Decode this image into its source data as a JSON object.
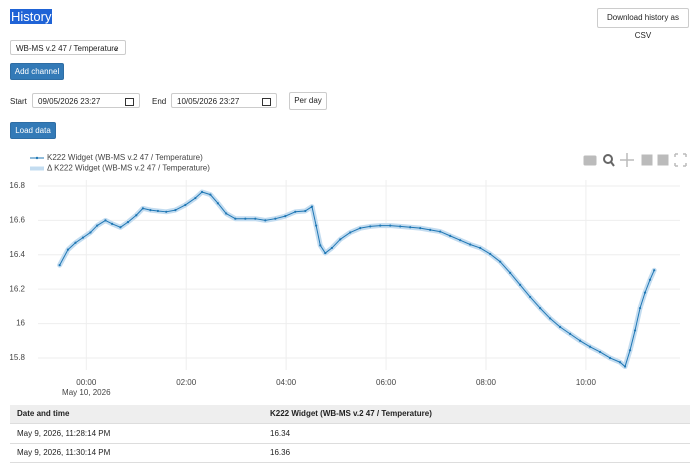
{
  "header": {
    "title": "History",
    "download_button": "Download history as CSV"
  },
  "controls": {
    "channel_select": "WB-MS v.2 47 / Temperature",
    "add_channel": "Add channel",
    "start_label": "Start",
    "start_value": "09/05/2026 23:27",
    "end_label": "End",
    "end_value": "10/05/2026 23:27",
    "per_day": "Per day",
    "load_data": "Load data"
  },
  "chart_data": {
    "type": "line",
    "x": [
      "2026-05-09T23:28",
      "2026-05-09T23:38",
      "2026-05-09T23:47",
      "2026-05-09T23:56",
      "2026-05-10T00:05",
      "2026-05-10T00:13",
      "2026-05-10T00:23",
      "2026-05-10T00:31",
      "2026-05-10T00:41",
      "2026-05-10T00:50",
      "2026-05-10T01:00",
      "2026-05-10T01:08",
      "2026-05-10T01:17",
      "2026-05-10T01:26",
      "2026-05-10T01:36",
      "2026-05-10T01:47",
      "2026-05-10T01:59",
      "2026-05-10T02:11",
      "2026-05-10T02:19",
      "2026-05-10T02:29",
      "2026-05-10T02:38",
      "2026-05-10T02:48",
      "2026-05-10T02:59",
      "2026-05-10T03:11",
      "2026-05-10T03:23",
      "2026-05-10T03:35",
      "2026-05-10T03:47",
      "2026-05-10T03:59",
      "2026-05-10T04:11",
      "2026-05-10T04:23",
      "2026-05-10T04:31",
      "2026-05-10T04:36",
      "2026-05-10T04:41",
      "2026-05-10T04:47",
      "2026-05-10T04:55",
      "2026-05-10T05:05",
      "2026-05-10T05:17",
      "2026-05-10T05:29",
      "2026-05-10T05:41",
      "2026-05-10T05:53",
      "2026-05-10T06:05",
      "2026-05-10T06:17",
      "2026-05-10T06:29",
      "2026-05-10T06:41",
      "2026-05-10T06:53",
      "2026-05-10T07:05",
      "2026-05-10T07:17",
      "2026-05-10T07:29",
      "2026-05-10T07:41",
      "2026-05-10T07:53",
      "2026-05-10T08:05",
      "2026-05-10T08:17",
      "2026-05-10T08:29",
      "2026-05-10T08:41",
      "2026-05-10T08:53",
      "2026-05-10T09:05",
      "2026-05-10T09:17",
      "2026-05-10T09:29",
      "2026-05-10T09:41",
      "2026-05-10T09:53",
      "2026-05-10T10:05",
      "2026-05-10T10:17",
      "2026-05-10T10:29",
      "2026-05-10T10:41",
      "2026-05-10T10:47",
      "2026-05-10T10:53",
      "2026-05-10T10:59",
      "2026-05-10T11:05",
      "2026-05-10T11:11",
      "2026-05-10T11:17",
      "2026-05-10T11:22"
    ],
    "series": [
      {
        "name": "K222 Widget (WB-MS v.2 47 / Temperature)",
        "color": "#1f77b4",
        "values": [
          16.34,
          16.43,
          16.47,
          16.5,
          16.53,
          16.57,
          16.6,
          16.58,
          16.56,
          16.59,
          16.63,
          16.67,
          16.66,
          16.655,
          16.65,
          16.66,
          16.69,
          16.73,
          16.765,
          16.75,
          16.7,
          16.64,
          16.61,
          16.61,
          16.61,
          16.6,
          16.61,
          16.625,
          16.65,
          16.655,
          16.68,
          16.57,
          16.455,
          16.41,
          16.44,
          16.49,
          16.53,
          16.555,
          16.565,
          16.57,
          16.57,
          16.565,
          16.56,
          16.555,
          16.545,
          16.535,
          16.51,
          16.485,
          16.46,
          16.44,
          16.405,
          16.36,
          16.295,
          16.225,
          16.155,
          16.09,
          16.03,
          15.98,
          15.94,
          15.9,
          15.865,
          15.835,
          15.8,
          15.775,
          15.75,
          15.845,
          15.96,
          16.09,
          16.18,
          16.255,
          16.31
        ]
      },
      {
        "name": "Δ K222 Widget (WB-MS v.2 47 / Temperature)",
        "color": "#c3dcf0",
        "values": [
          16.34,
          16.43,
          16.47,
          16.5,
          16.53,
          16.57,
          16.6,
          16.58,
          16.56,
          16.59,
          16.63,
          16.67,
          16.66,
          16.655,
          16.65,
          16.66,
          16.69,
          16.73,
          16.765,
          16.75,
          16.7,
          16.64,
          16.61,
          16.61,
          16.61,
          16.6,
          16.61,
          16.625,
          16.65,
          16.655,
          16.68,
          16.57,
          16.455,
          16.41,
          16.44,
          16.49,
          16.53,
          16.555,
          16.565,
          16.57,
          16.57,
          16.565,
          16.56,
          16.555,
          16.545,
          16.535,
          16.51,
          16.485,
          16.46,
          16.44,
          16.405,
          16.36,
          16.295,
          16.225,
          16.155,
          16.09,
          16.03,
          15.98,
          15.94,
          15.9,
          15.865,
          15.835,
          15.8,
          15.775,
          15.75,
          15.845,
          15.96,
          16.09,
          16.18,
          16.255,
          16.31
        ]
      }
    ],
    "xlim": [
      "2026-05-09T23:02",
      "2026-05-10T11:53"
    ],
    "xticks": [
      {
        "value": "2026-05-10T00:00",
        "label": "00:00"
      },
      {
        "value": "2026-05-10T02:00",
        "label": "02:00"
      },
      {
        "value": "2026-05-10T04:00",
        "label": "04:00"
      },
      {
        "value": "2026-05-10T06:00",
        "label": "06:00"
      },
      {
        "value": "2026-05-10T08:00",
        "label": "08:00"
      },
      {
        "value": "2026-05-10T10:00",
        "label": "10:00"
      }
    ],
    "x_date_label": "May 10, 2026",
    "ylim": [
      15.73,
      16.835
    ],
    "yticks": [
      15.8,
      16,
      16.2,
      16.4,
      16.6,
      16.8
    ],
    "grid": true
  },
  "table": {
    "columns": [
      "Date and time",
      "K222 Widget (WB-MS v.2 47 / Temperature)"
    ],
    "rows": [
      [
        "May 9, 2026, 11:28:14 PM",
        "16.34"
      ],
      [
        "May 9, 2026, 11:30:14 PM",
        "16.36"
      ]
    ]
  }
}
